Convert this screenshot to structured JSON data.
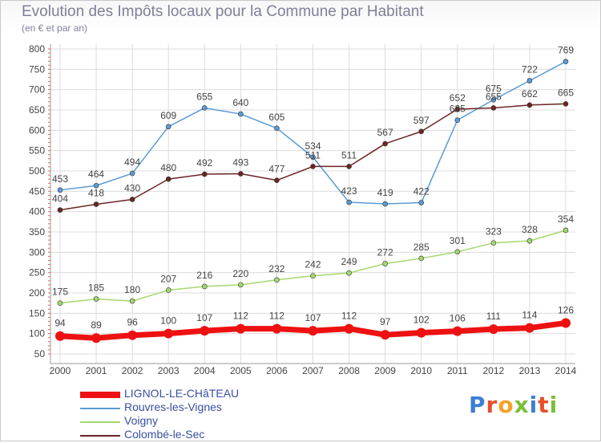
{
  "header": {
    "title": "Evolution des Impôts locaux pour la Commune par Habitant",
    "subtitle": "(en € et par an)"
  },
  "logo": {
    "text": "Proxiti",
    "colors": [
      "#3b7fd6",
      "#e84e2a",
      "#f4a12a",
      "#7bbf3a",
      "#3b7fd6",
      "#e84e2a",
      "#7bbf3a"
    ]
  },
  "chart_data": {
    "type": "line",
    "title": "Evolution des Impôts locaux pour la Commune par Habitant",
    "subtitle": "(en € et par an)",
    "x": [
      "2000",
      "2001",
      "2002",
      "2003",
      "2004",
      "2005",
      "2006",
      "2007",
      "2008",
      "2009",
      "2010",
      "2011",
      "2012",
      "2013",
      "2014"
    ],
    "ylim": [
      50,
      800
    ],
    "yticks": [
      50,
      100,
      150,
      200,
      250,
      300,
      350,
      400,
      450,
      500,
      550,
      600,
      650,
      700,
      750,
      800
    ],
    "grid": true,
    "legend_position": "bottom-left",
    "series": [
      {
        "name": "LIGNOL-LE-CHâTEAU",
        "color": "#ee1111",
        "values": [
          94,
          89,
          96,
          100,
          107,
          112,
          112,
          107,
          112,
          97,
          102,
          106,
          111,
          114,
          126
        ]
      },
      {
        "name": "Rouvres-les-Vignes",
        "color": "#5b9bd5",
        "values": [
          453,
          464,
          494,
          609,
          655,
          640,
          605,
          534,
          423,
          419,
          422,
          625,
          675,
          722,
          769
        ]
      },
      {
        "name": "Voigny",
        "color": "#a5d86f",
        "values": [
          175,
          185,
          180,
          207,
          216,
          220,
          232,
          242,
          249,
          272,
          285,
          301,
          323,
          328,
          354
        ]
      },
      {
        "name": "Colombé-le-Sec",
        "color": "#6b2424",
        "values": [
          404,
          418,
          430,
          480,
          492,
          493,
          477,
          511,
          511,
          567,
          597,
          652,
          655,
          662,
          665
        ]
      }
    ]
  }
}
